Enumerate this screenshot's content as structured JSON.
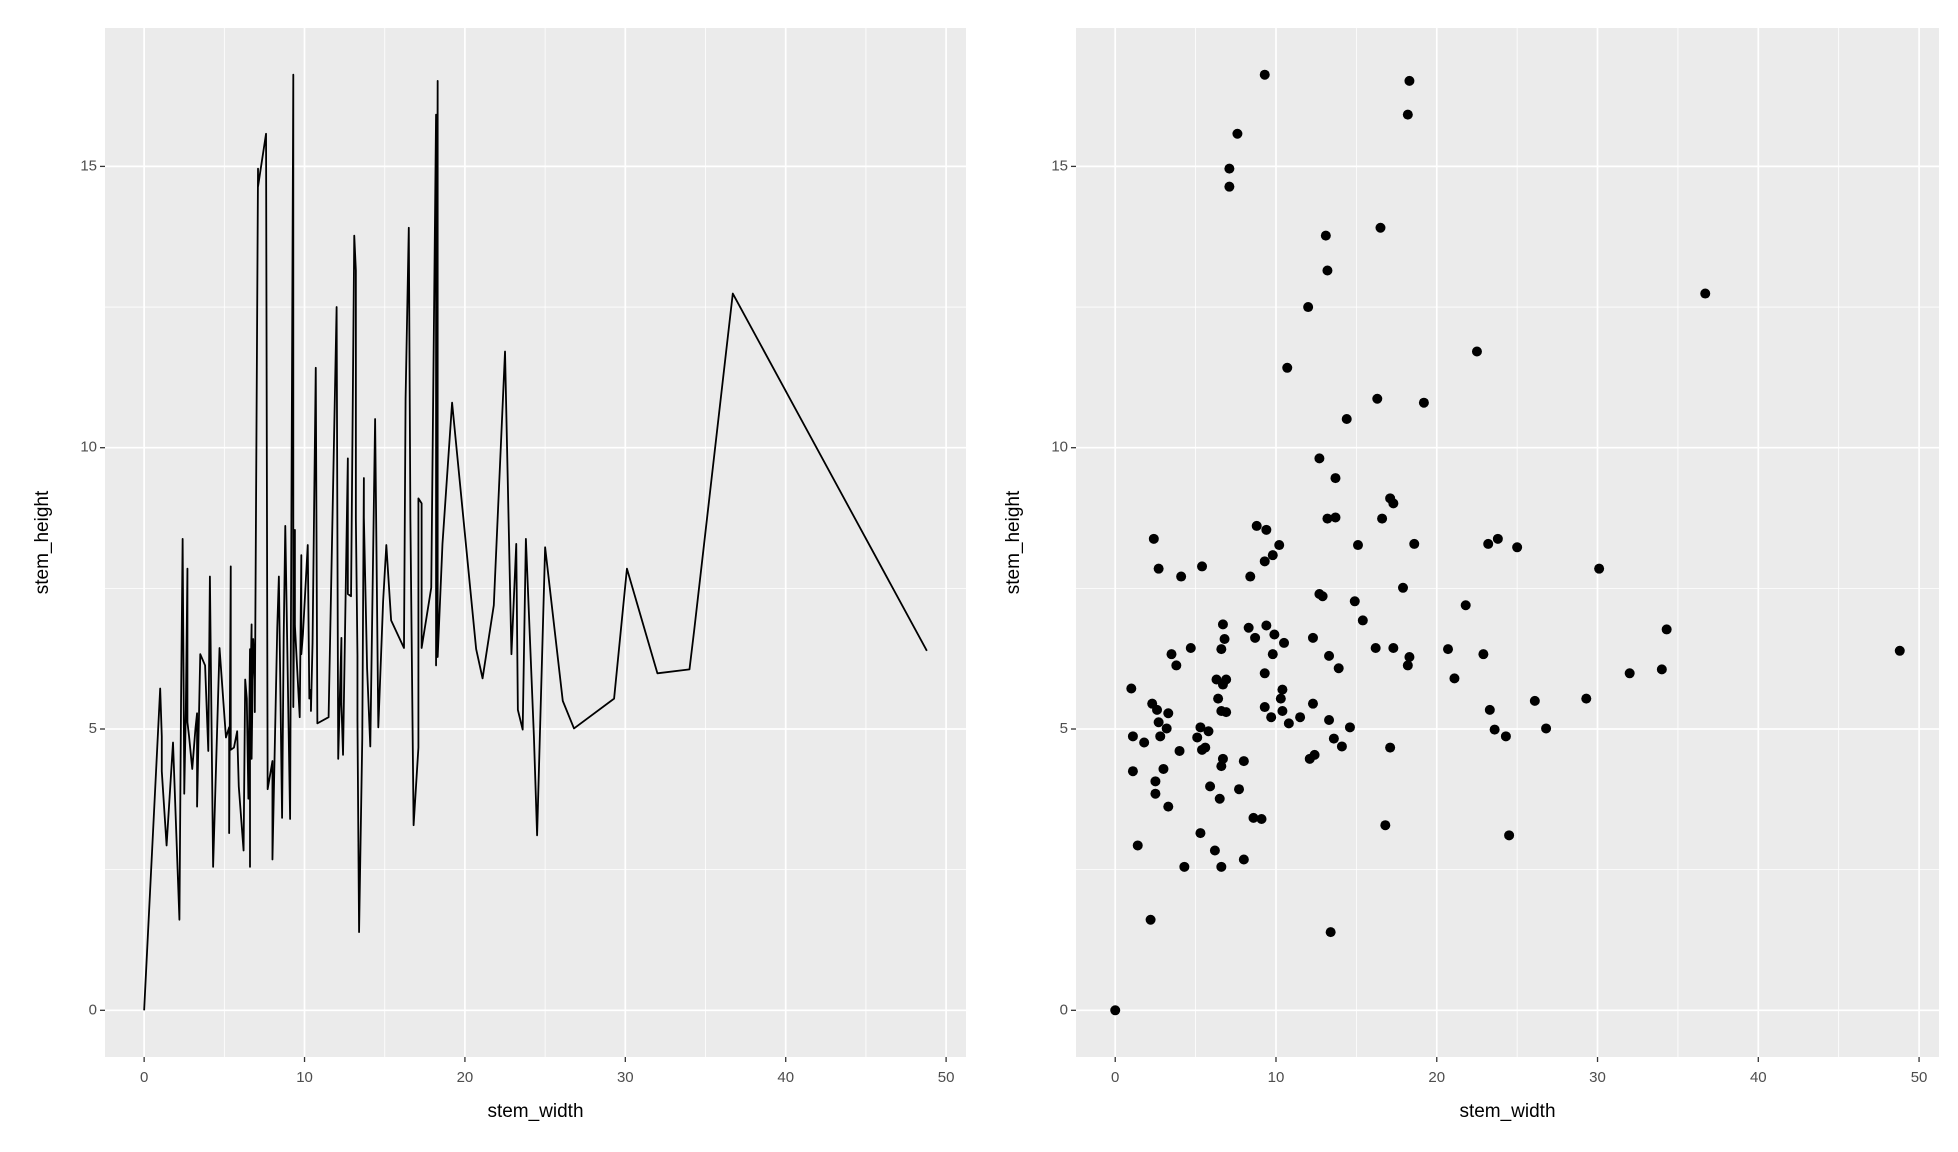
{
  "chart_data": [
    {
      "type": "line",
      "x_label": "stem_width",
      "y_label": "stem_height",
      "color": "#000000",
      "grid": true,
      "xlim": [
        -2.44,
        51.24
      ],
      "ylim": [
        -0.83,
        17.46
      ],
      "xticks": [
        0,
        10,
        20,
        30,
        40,
        50
      ],
      "yticks": [
        0,
        5,
        10,
        15
      ],
      "x": [
        0,
        1.0,
        1.1,
        1.1,
        1.4,
        1.8,
        2.2,
        2.3,
        2.4,
        2.5,
        2.5,
        2.6,
        2.7,
        2.7,
        2.8,
        3.0,
        3.2,
        3.3,
        3.3,
        3.5,
        3.8,
        4.0,
        4.1,
        4.3,
        4.7,
        5.1,
        5.3,
        5.3,
        5.4,
        5.4,
        5.6,
        5.8,
        5.9,
        6.2,
        6.3,
        6.4,
        6.5,
        6.6,
        6.6,
        6.6,
        6.6,
        6.7,
        6.7,
        6.7,
        6.8,
        6.9,
        6.9,
        7.1,
        7.1,
        7.6,
        7.7,
        8.0,
        8.0,
        8.3,
        8.4,
        8.6,
        8.7,
        8.8,
        9.1,
        9.3,
        9.3,
        9.3,
        9.3,
        9.4,
        9.4,
        9.7,
        9.8,
        9.8,
        9.9,
        10.2,
        10.3,
        10.4,
        10.4,
        10.5,
        10.7,
        10.8,
        11.5,
        12.0,
        12.1,
        12.3,
        12.3,
        12.4,
        12.7,
        12.7,
        12.9,
        13.1,
        13.2,
        13.2,
        13.3,
        13.3,
        13.4,
        13.6,
        13.7,
        13.7,
        13.9,
        14.1,
        14.4,
        14.6,
        14.9,
        15.1,
        15.4,
        16.2,
        16.3,
        16.5,
        16.6,
        16.8,
        17.1,
        17.1,
        17.3,
        17.3,
        17.9,
        18.2,
        18.2,
        18.3,
        18.3,
        18.6,
        19.2,
        20.7,
        21.1,
        21.8,
        22.5,
        22.9,
        23.2,
        23.3,
        23.6,
        23.8,
        24.3,
        24.5,
        25.0,
        26.1,
        26.8,
        29.3,
        30.1,
        32.0,
        34.0,
        34.3,
        36.7,
        48.8
      ],
      "y": [
        0,
        5.72,
        4.87,
        4.25,
        2.93,
        4.76,
        1.61,
        5.45,
        8.38,
        4.07,
        3.85,
        5.34,
        7.85,
        5.12,
        4.87,
        4.29,
        5.01,
        5.28,
        3.62,
        6.33,
        6.13,
        4.61,
        7.71,
        2.55,
        6.44,
        4.85,
        5.03,
        3.15,
        7.89,
        4.63,
        4.67,
        4.96,
        3.98,
        2.84,
        5.88,
        5.54,
        3.76,
        6.42,
        4.34,
        2.55,
        5.32,
        6.86,
        5.79,
        4.47,
        6.6,
        5.88,
        5.3,
        14.96,
        14.64,
        15.58,
        3.93,
        4.43,
        2.68,
        6.8,
        7.71,
        3.42,
        6.62,
        8.61,
        3.4,
        16.63,
        7.98,
        5.99,
        5.39,
        8.54,
        6.84,
        5.21,
        8.09,
        6.33,
        6.68,
        8.27,
        5.54,
        5.7,
        5.32,
        6.53,
        11.42,
        5.1,
        5.21,
        12.5,
        4.47,
        6.62,
        5.45,
        4.54,
        9.81,
        7.4,
        7.36,
        13.77,
        13.15,
        8.74,
        6.3,
        5.16,
        1.39,
        4.83,
        9.46,
        8.76,
        6.08,
        4.69,
        10.51,
        5.03,
        7.27,
        8.27,
        6.93,
        6.44,
        10.87,
        13.91,
        8.74,
        3.29,
        4.67,
        9.1,
        9.01,
        6.44,
        7.51,
        15.92,
        6.13,
        16.52,
        6.28,
        8.29,
        10.8,
        6.42,
        5.9,
        7.2,
        11.71,
        6.33,
        8.29,
        5.34,
        4.99,
        8.38,
        4.87,
        3.11,
        8.23,
        5.5,
        5.01,
        5.54,
        7.85,
        5.99,
        6.06,
        6.77,
        12.74,
        6.39
      ]
    },
    {
      "type": "scatter",
      "x_label": "stem_width",
      "y_label": "stem_height",
      "color": "#000000",
      "grid": true,
      "xlim": [
        -2.44,
        51.24
      ],
      "ylim": [
        -0.83,
        17.46
      ],
      "xticks": [
        0,
        10,
        20,
        30,
        40,
        50
      ],
      "yticks": [
        0,
        5,
        10,
        15
      ],
      "x": [
        0,
        1.0,
        1.1,
        1.1,
        1.4,
        1.8,
        2.2,
        2.3,
        2.4,
        2.5,
        2.5,
        2.6,
        2.7,
        2.7,
        2.8,
        3.0,
        3.2,
        3.3,
        3.3,
        3.5,
        3.8,
        4.0,
        4.1,
        4.3,
        4.7,
        5.1,
        5.3,
        5.3,
        5.4,
        5.4,
        5.6,
        5.8,
        5.9,
        6.2,
        6.3,
        6.4,
        6.5,
        6.6,
        6.6,
        6.6,
        6.6,
        6.7,
        6.7,
        6.7,
        6.8,
        6.9,
        6.9,
        7.1,
        7.1,
        7.6,
        7.7,
        8.0,
        8.0,
        8.3,
        8.4,
        8.6,
        8.7,
        8.8,
        9.1,
        9.3,
        9.3,
        9.3,
        9.3,
        9.4,
        9.4,
        9.7,
        9.8,
        9.8,
        9.9,
        10.2,
        10.3,
        10.4,
        10.4,
        10.5,
        10.7,
        10.8,
        11.5,
        12.0,
        12.1,
        12.3,
        12.3,
        12.4,
        12.7,
        12.7,
        12.9,
        13.1,
        13.2,
        13.2,
        13.3,
        13.3,
        13.4,
        13.6,
        13.7,
        13.7,
        13.9,
        14.1,
        14.4,
        14.6,
        14.9,
        15.1,
        15.4,
        16.2,
        16.3,
        16.5,
        16.6,
        16.8,
        17.1,
        17.1,
        17.3,
        17.3,
        17.9,
        18.2,
        18.2,
        18.3,
        18.3,
        18.6,
        19.2,
        20.7,
        21.1,
        21.8,
        22.5,
        22.9,
        23.2,
        23.3,
        23.6,
        23.8,
        24.3,
        24.5,
        25.0,
        26.1,
        26.8,
        29.3,
        30.1,
        32.0,
        34.0,
        34.3,
        36.7,
        48.8
      ],
      "y": [
        0,
        5.72,
        4.87,
        4.25,
        2.93,
        4.76,
        1.61,
        5.45,
        8.38,
        4.07,
        3.85,
        5.34,
        7.85,
        5.12,
        4.87,
        4.29,
        5.01,
        5.28,
        3.62,
        6.33,
        6.13,
        4.61,
        7.71,
        2.55,
        6.44,
        4.85,
        5.03,
        3.15,
        7.89,
        4.63,
        4.67,
        4.96,
        3.98,
        2.84,
        5.88,
        5.54,
        3.76,
        6.42,
        4.34,
        2.55,
        5.32,
        6.86,
        5.79,
        4.47,
        6.6,
        5.88,
        5.3,
        14.96,
        14.64,
        15.58,
        3.93,
        4.43,
        2.68,
        6.8,
        7.71,
        3.42,
        6.62,
        8.61,
        3.4,
        16.63,
        7.98,
        5.99,
        5.39,
        8.54,
        6.84,
        5.21,
        8.09,
        6.33,
        6.68,
        8.27,
        5.54,
        5.7,
        5.32,
        6.53,
        11.42,
        5.1,
        5.21,
        12.5,
        4.47,
        6.62,
        5.45,
        4.54,
        9.81,
        7.4,
        7.36,
        13.77,
        13.15,
        8.74,
        6.3,
        5.16,
        1.39,
        4.83,
        9.46,
        8.76,
        6.08,
        4.69,
        10.51,
        5.03,
        7.27,
        8.27,
        6.93,
        6.44,
        10.87,
        13.91,
        8.74,
        3.29,
        4.67,
        9.1,
        9.01,
        6.44,
        7.51,
        15.92,
        6.13,
        16.52,
        6.28,
        8.29,
        10.8,
        6.42,
        5.9,
        7.2,
        11.71,
        6.33,
        8.29,
        5.34,
        4.99,
        8.38,
        4.87,
        3.11,
        8.23,
        5.5,
        5.01,
        5.54,
        7.85,
        5.99,
        6.06,
        6.77,
        12.74,
        6.39
      ]
    }
  ]
}
